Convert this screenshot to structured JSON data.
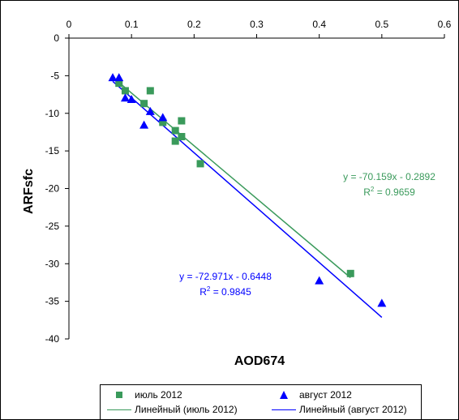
{
  "chart_data": {
    "type": "scatter",
    "xlabel": "AOD674",
    "ylabel": "ARFsfc",
    "xlim": [
      0,
      0.6
    ],
    "ylim": [
      -40,
      0
    ],
    "x_ticks": [
      0,
      0.1,
      0.2,
      0.3,
      0.4,
      0.5,
      0.6
    ],
    "y_ticks": [
      0,
      -5,
      -10,
      -15,
      -20,
      -25,
      -30,
      -35,
      -40
    ],
    "x_axis_position": "top",
    "grid": false,
    "legend_position": "bottom",
    "series": [
      {
        "name": "июль 2012",
        "marker": "square",
        "color": "#3a9a5b",
        "x": [
          0.08,
          0.09,
          0.12,
          0.13,
          0.15,
          0.17,
          0.17,
          0.18,
          0.18,
          0.21,
          0.45
        ],
        "y": [
          -6.0,
          -7.0,
          -8.7,
          -7.0,
          -11.2,
          -12.3,
          -13.7,
          -13.1,
          -11.0,
          -16.7,
          -31.3
        ]
      },
      {
        "name": "август 2012",
        "marker": "triangle",
        "color": "#0000ff",
        "x": [
          0.07,
          0.08,
          0.09,
          0.1,
          0.12,
          0.13,
          0.15,
          0.4,
          0.5
        ],
        "y": [
          -5.3,
          -5.3,
          -8.0,
          -8.2,
          -11.6,
          -9.8,
          -10.6,
          -32.3,
          -35.3
        ]
      }
    ],
    "trendlines": [
      {
        "name": "Линейный (июль 2012)",
        "color": "#3a9a5b",
        "slope": -70.159,
        "intercept": -0.2892,
        "x_range": [
          0.07,
          0.45
        ],
        "equation": "y = -70.159x - 0.2892",
        "r2_label": "R",
        "r2_value": " = 0.9659"
      },
      {
        "name": "Линейный (август 2012)",
        "color": "#0000ff",
        "slope": -72.971,
        "intercept": -0.6448,
        "x_range": [
          0.07,
          0.5
        ],
        "equation": "y = -72.971x - 0.6448",
        "r2_label": "R",
        "r2_value": " = 0.9845"
      }
    ]
  },
  "legend": {
    "items": [
      {
        "label": "июль 2012"
      },
      {
        "label": "август 2012"
      },
      {
        "label": "Линейный (июль 2012)"
      },
      {
        "label": "Линейный (август 2012)"
      }
    ]
  }
}
